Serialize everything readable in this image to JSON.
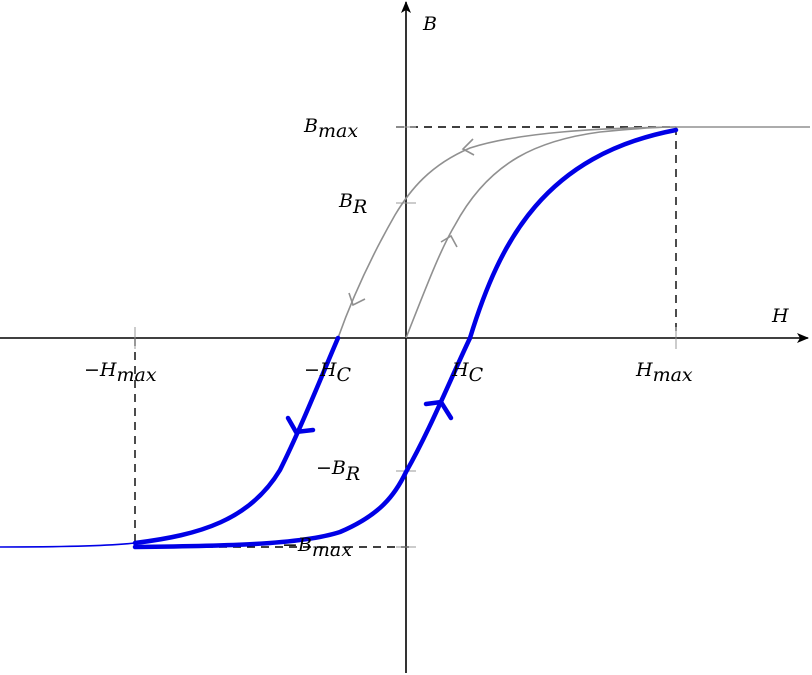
{
  "axes": {
    "x_label": "H",
    "y_label": "B"
  },
  "labels": {
    "neg_hmax": {
      "main": "−H",
      "sub": "max"
    },
    "neg_hc": {
      "main": "−H",
      "sub": "C"
    },
    "hc": {
      "main": "H",
      "sub": "C"
    },
    "hmax": {
      "main": "H",
      "sub": "max"
    },
    "bmax": {
      "main": "B",
      "sub": "max"
    },
    "br": {
      "main": "B",
      "sub": "R"
    },
    "neg_br": {
      "main": "−B",
      "sub": "R"
    },
    "neg_bmax": {
      "main": "−B",
      "sub": "max"
    }
  },
  "colors": {
    "loop": "#0000e6",
    "initial_curve": "#909090",
    "axes": "#000000",
    "guides": "#000000"
  }
}
